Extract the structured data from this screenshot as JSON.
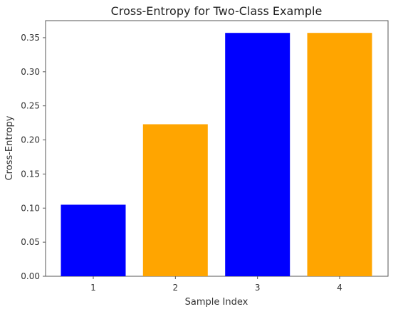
{
  "chart_data": {
    "type": "bar",
    "title": "Cross-Entropy for Two-Class Example",
    "xlabel": "Sample Index",
    "ylabel": "Cross-Entropy",
    "categories": [
      "1",
      "2",
      "3",
      "4"
    ],
    "values": [
      0.105,
      0.223,
      0.357,
      0.357
    ],
    "bar_colors": [
      "#0000ff",
      "#ffa500",
      "#0000ff",
      "#ffa500"
    ],
    "ylim": [
      0,
      0.375
    ],
    "yticks": [
      0.0,
      0.05,
      0.1,
      0.15,
      0.2,
      0.25,
      0.3,
      0.35
    ],
    "ytick_labels": [
      "0.00",
      "0.05",
      "0.10",
      "0.15",
      "0.20",
      "0.25",
      "0.30",
      "0.35"
    ],
    "grid": false,
    "legend": "none"
  }
}
